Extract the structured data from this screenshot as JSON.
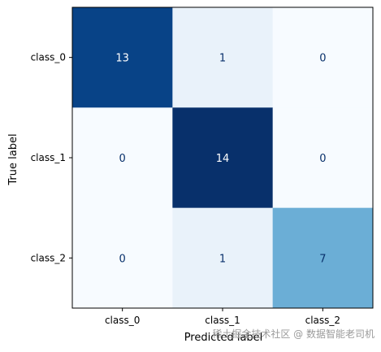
{
  "chart_data": {
    "type": "heatmap",
    "title": "",
    "xlabel": "Predicted label",
    "ylabel": "True label",
    "x_categories": [
      "class_0",
      "class_1",
      "class_2"
    ],
    "y_categories": [
      "class_0",
      "class_1",
      "class_2"
    ],
    "values": [
      [
        13,
        1,
        0
      ],
      [
        0,
        14,
        0
      ],
      [
        0,
        1,
        7
      ]
    ],
    "colormap": "Blues",
    "colors": {
      "low": "#f7fbff",
      "high": "#08306b",
      "text_dark": "#08306b",
      "text_light": "#ffffff"
    },
    "grid": false
  },
  "watermark": "稀土掘金技术社区 @ 数据智能老司机"
}
